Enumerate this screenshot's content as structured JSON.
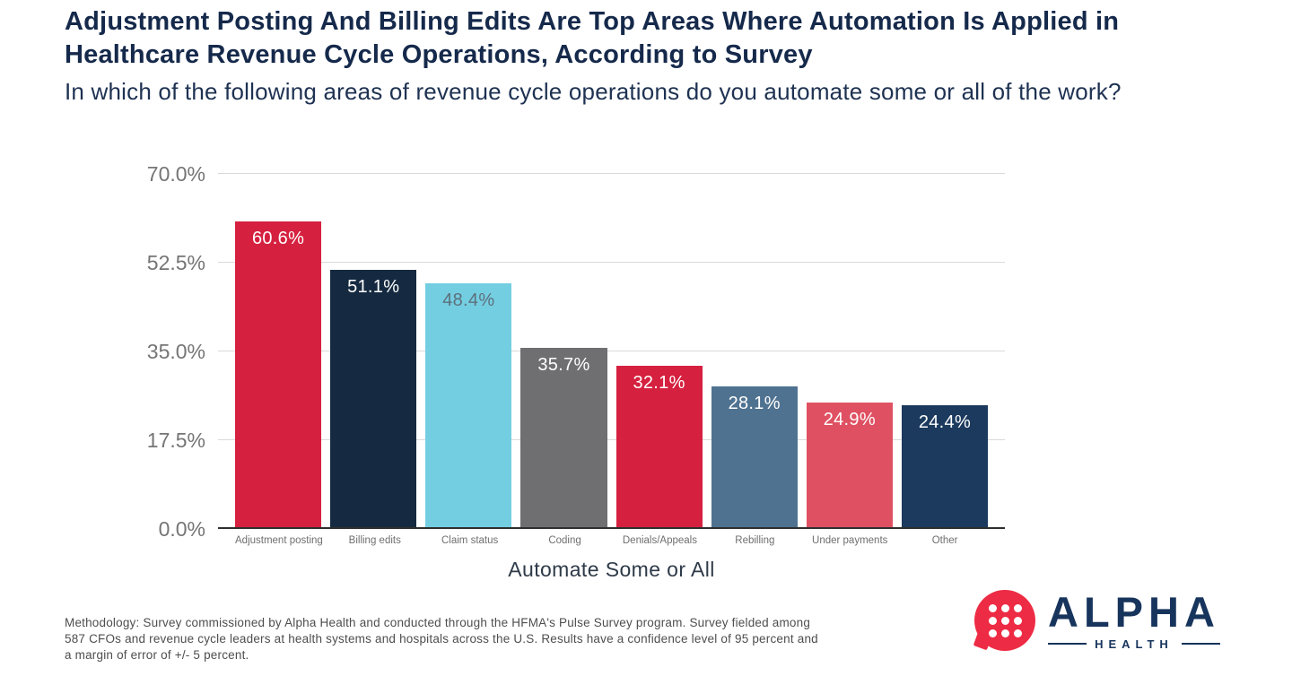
{
  "theme": {
    "title_navy": "#15294b",
    "subtitle_navy": "#1e3252",
    "tick_gray": "#757575",
    "cat_gray": "#6f6f6f",
    "grid_gray": "#d9d9d9",
    "axis_line": "#2f2f2f",
    "xlabel_dark": "#2e3a48",
    "methodology_gray": "#4e4e4e",
    "logo_red": "#ee2b44",
    "brand_navy": "#17345c"
  },
  "chart_data": {
    "type": "bar",
    "title": "Adjustment Posting And Billing Edits Are Top Areas Where Automation Is Applied in Healthcare Revenue Cycle Operations, According to Survey",
    "title_lines": [
      "Adjustment Posting And Billing Edits Are Top Areas Where Automation Is Applied in",
      "Healthcare Revenue Cycle Operations, According to Survey"
    ],
    "subtitle": "In which of the following areas of revenue cycle operations do you automate some or all of the work?",
    "xlabel": "Automate Some or All",
    "ylabel": "",
    "ylim": [
      0,
      70
    ],
    "yticks": [
      "70.0%",
      "52.5%",
      "35.0%",
      "17.5%",
      "0.0%"
    ],
    "grid": true,
    "legend": false,
    "categories": [
      "Adjustment posting",
      "Billing edits",
      "Claim status",
      "Coding",
      "Denials/Appeals",
      "Rebilling",
      "Under payments",
      "Other"
    ],
    "values": [
      60.6,
      51.1,
      48.4,
      35.7,
      32.1,
      28.1,
      24.9,
      24.4
    ],
    "value_labels": [
      "60.6%",
      "51.1%",
      "48.4%",
      "35.7%",
      "32.1%",
      "28.1%",
      "24.9%",
      "24.4%"
    ],
    "bar_colors": [
      "#d5203f",
      "#152a40",
      "#74cee2",
      "#6f6f72",
      "#d5203f",
      "#4f7290",
      "#df5162",
      "#1c3a5e"
    ],
    "value_label_colors": [
      "#ffffff",
      "#ffffff",
      "#5d707c",
      "#ffffff",
      "#ffffff",
      "#ffffff",
      "#ffffff",
      "#ffffff"
    ]
  },
  "footer": {
    "methodology": "Methodology: Survey commissioned by Alpha Health and conducted through the HFMA's Pulse Survey program. Survey fielded among 587 CFOs and revenue cycle leaders at health systems and hospitals across the U.S. Results have a confidence level of 95 percent and a margin of error of +/- 5 percent.",
    "logo": {
      "brand": "ALPHA",
      "sub": "HEALTH"
    }
  }
}
